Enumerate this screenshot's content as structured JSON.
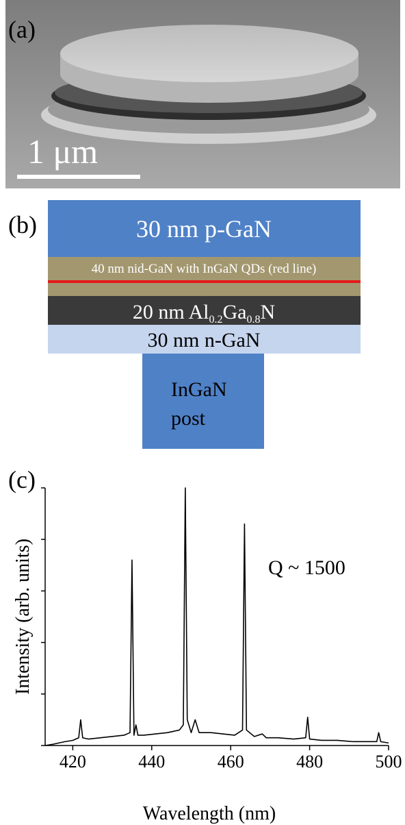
{
  "panel_a": {
    "label": "(a)",
    "scale_bar": "1 μm"
  },
  "panel_b": {
    "label": "(b)",
    "layers": [
      {
        "text": "30 nm p-GaN"
      },
      {
        "text": "40 nm nid-GaN with InGaN QDs (red line)"
      },
      {
        "text_parts": [
          "20 nm Al",
          "0.2",
          "Ga",
          "0.8",
          "N"
        ]
      },
      {
        "text": "30 nm n-GaN"
      },
      {
        "text_lines": [
          "InGaN",
          "post"
        ]
      }
    ]
  },
  "chart_data": {
    "type": "line",
    "panel_label": "(c)",
    "xlabel": "Wavelength (nm)",
    "ylabel": "Intensity (arb. units)",
    "annotation": "Q ~ 1500",
    "x": [
      413,
      415,
      418,
      420,
      421.5,
      422,
      422.5,
      424,
      427,
      430,
      433,
      434.5,
      435,
      435.5,
      436,
      436.5,
      438,
      441,
      444,
      447,
      448,
      448.5,
      449,
      450,
      451,
      452,
      455,
      458,
      461,
      463,
      463.5,
      464,
      466,
      468,
      469,
      472,
      476,
      479,
      479.5,
      480,
      483,
      487,
      491,
      495,
      497,
      497.5,
      498,
      500
    ],
    "values": [
      0,
      0.005,
      0.015,
      0.02,
      0.03,
      0.1,
      0.03,
      0.025,
      0.03,
      0.035,
      0.04,
      0.05,
      0.72,
      0.04,
      0.08,
      0.04,
      0.04,
      0.045,
      0.05,
      0.06,
      0.08,
      1.0,
      0.1,
      0.05,
      0.1,
      0.05,
      0.05,
      0.045,
      0.04,
      0.06,
      0.86,
      0.06,
      0.035,
      0.045,
      0.03,
      0.03,
      0.025,
      0.03,
      0.11,
      0.025,
      0.02,
      0.02,
      0.015,
      0.015,
      0.015,
      0.05,
      0.015,
      0.01
    ],
    "color": "#000000",
    "xlim": [
      413,
      500
    ],
    "xticks": [
      420,
      440,
      460,
      480,
      500
    ],
    "ylim": [
      0,
      1
    ],
    "yticks": [
      0,
      0.2,
      0.4,
      0.6,
      0.8,
      1.0
    ]
  }
}
